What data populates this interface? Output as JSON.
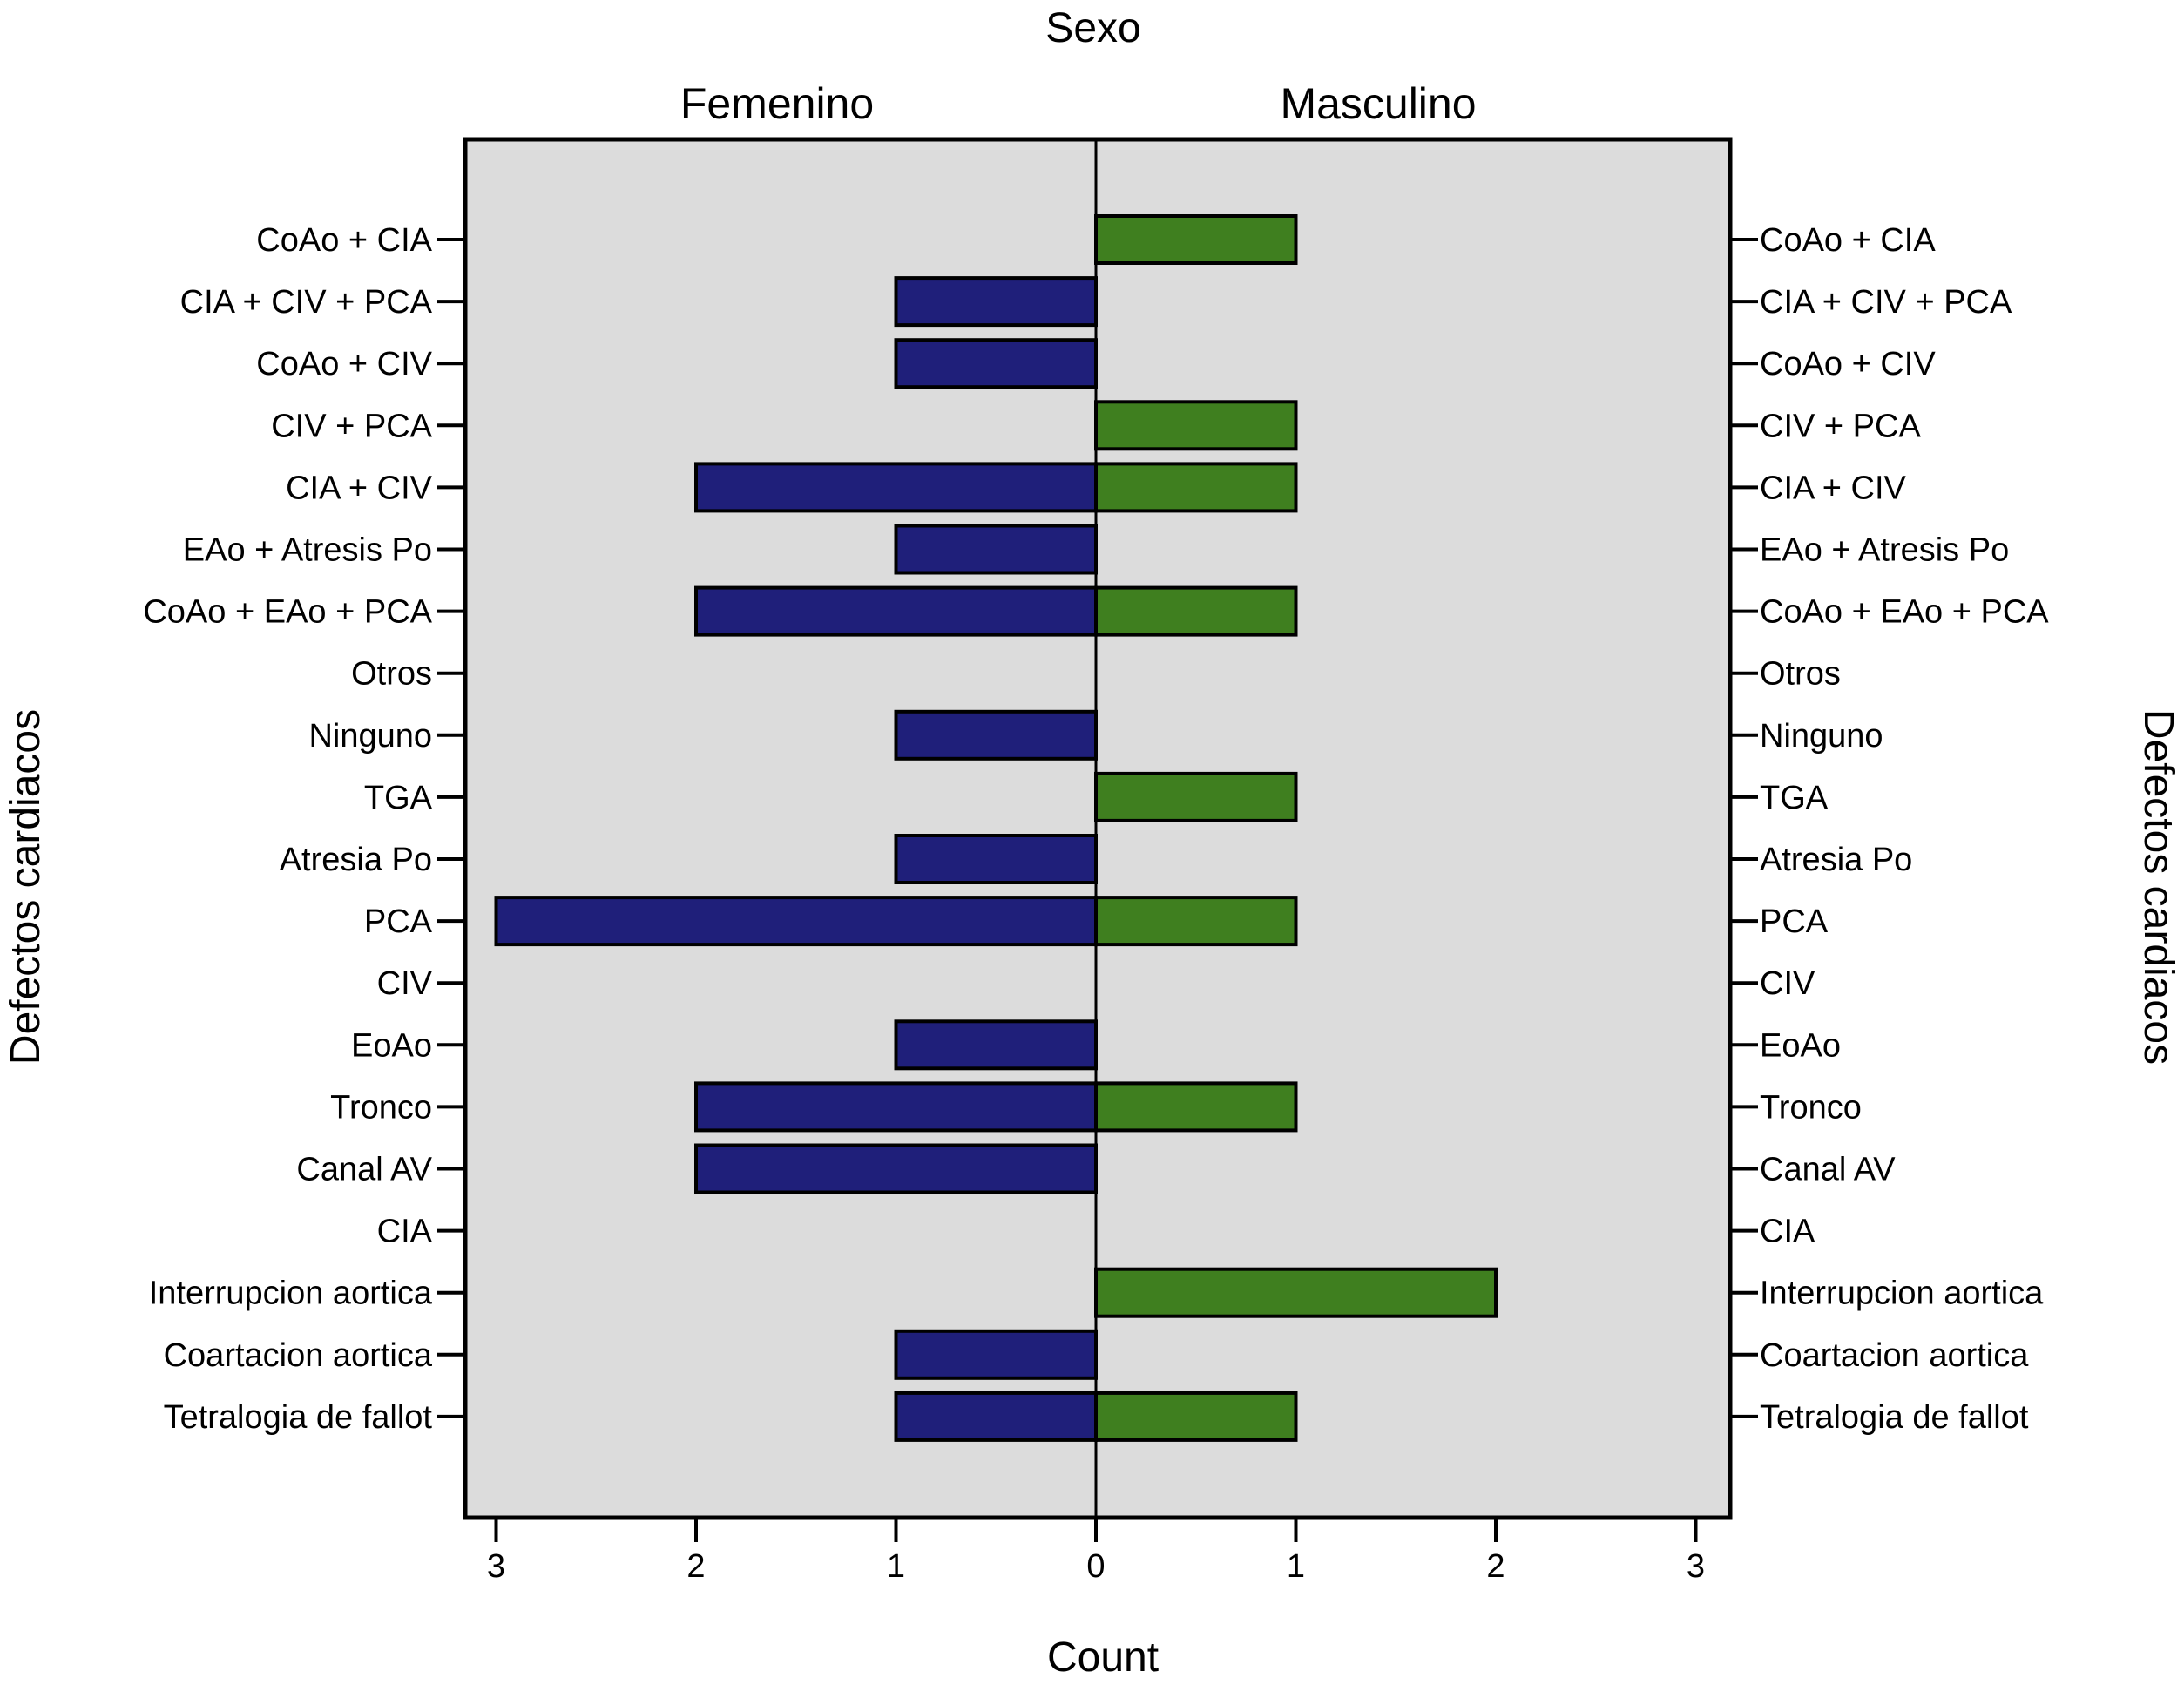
{
  "chart_data": {
    "type": "bar",
    "title": "Sexo",
    "xlabel": "Count",
    "ylabel": "Defectos cardiacos",
    "xlim": [
      0,
      3
    ],
    "x_ticks": [
      3,
      2,
      1,
      0,
      1,
      2,
      3
    ],
    "categories": [
      "CoAo + CIA",
      "CIA + CIV + PCA",
      "CoAo + CIV",
      "CIV + PCA",
      "CIA + CIV",
      "EAo + Atresis Po",
      "CoAo + EAo + PCA",
      "Otros",
      "Ninguno",
      "TGA",
      "Atresia Po",
      "PCA",
      "CIV",
      "EoAo",
      "Tronco",
      "Canal AV",
      "CIA",
      "Interrupcion aortica",
      "Coartacion aortica",
      "Tetralogia de fallot"
    ],
    "series": [
      {
        "name": "Femenino",
        "color": "#1f1f7a",
        "values": [
          0,
          1,
          1,
          0,
          2,
          1,
          2,
          0,
          1,
          0,
          1,
          3,
          0,
          1,
          2,
          2,
          0,
          0,
          1,
          1
        ]
      },
      {
        "name": "Masculino",
        "color": "#3f7f1f",
        "values": [
          1,
          0,
          0,
          1,
          1,
          0,
          1,
          0,
          0,
          1,
          0,
          1,
          0,
          0,
          1,
          0,
          0,
          2,
          0,
          1
        ]
      }
    ],
    "background_color": "#dcdcdc",
    "grid": false
  }
}
